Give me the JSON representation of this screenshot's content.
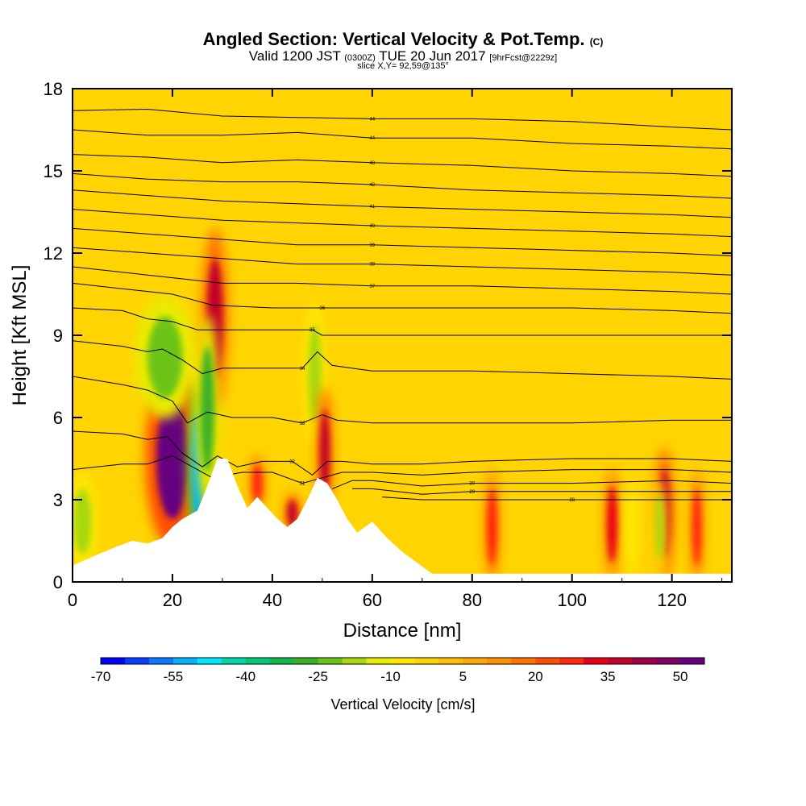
{
  "header": {
    "title": "Angled Section: Vertical Velocity & Pot.Temp.",
    "title_unit": "(C)",
    "valid_main": "Valid 1200 JST",
    "valid_utc": "(0300Z)",
    "valid_date": "TUE 20 Jun 2017",
    "forecast": "[9hrFcst@2229z]",
    "slice": "slice X,Y= 92,59@135°"
  },
  "chart_data": {
    "type": "heatmap",
    "xlabel": "Distance [nm]",
    "ylabel": "Height [Kft MSL]",
    "xlim": [
      0,
      132
    ],
    "ylim": [
      0,
      18
    ],
    "x_ticks": [
      "0",
      "20",
      "40",
      "60",
      "80",
      "100",
      "120"
    ],
    "y_ticks": [
      "0",
      "3",
      "6",
      "9",
      "12",
      "15",
      "18"
    ],
    "colorbar": {
      "label": "Vertical Velocity [cm/s]",
      "range": [
        -70,
        55
      ],
      "tick_labels": [
        "-70",
        "-55",
        "-40",
        "-25",
        "-10",
        "5",
        "20",
        "35",
        "50"
      ],
      "colors": [
        "#0000ff",
        "#0a3cff",
        "#0a78ff",
        "#00b4ff",
        "#00e8ff",
        "#00d8a8",
        "#00c878",
        "#10b848",
        "#3cb028",
        "#6cc418",
        "#a8d810",
        "#e8ec00",
        "#ffe800",
        "#ffd400",
        "#ffbe00",
        "#ffa800",
        "#ff9000",
        "#ff7400",
        "#ff5000",
        "#ff2810",
        "#e80018",
        "#c4002c",
        "#a00048",
        "#820064",
        "#660080"
      ]
    },
    "terrain": [
      {
        "x": 0,
        "y": 0.6
      },
      {
        "x": 5,
        "y": 1
      },
      {
        "x": 9,
        "y": 1.3
      },
      {
        "x": 12,
        "y": 1.5
      },
      {
        "x": 15,
        "y": 1.4
      },
      {
        "x": 18,
        "y": 1.6
      },
      {
        "x": 20,
        "y": 2
      },
      {
        "x": 22,
        "y": 2.3
      },
      {
        "x": 25,
        "y": 2.6
      },
      {
        "x": 27,
        "y": 3.5
      },
      {
        "x": 29,
        "y": 4.5
      },
      {
        "x": 31,
        "y": 4.5
      },
      {
        "x": 33,
        "y": 3.5
      },
      {
        "x": 35,
        "y": 2.7
      },
      {
        "x": 37,
        "y": 3.1
      },
      {
        "x": 39,
        "y": 2.7
      },
      {
        "x": 41,
        "y": 2.3
      },
      {
        "x": 43,
        "y": 2
      },
      {
        "x": 45,
        "y": 2.3
      },
      {
        "x": 47,
        "y": 3
      },
      {
        "x": 49,
        "y": 3.8
      },
      {
        "x": 51,
        "y": 3.6
      },
      {
        "x": 53,
        "y": 3
      },
      {
        "x": 55,
        "y": 2.3
      },
      {
        "x": 57,
        "y": 1.8
      },
      {
        "x": 60,
        "y": 2.2
      },
      {
        "x": 63,
        "y": 1.6
      },
      {
        "x": 66,
        "y": 1.1
      },
      {
        "x": 69,
        "y": 0.7
      },
      {
        "x": 72,
        "y": 0.3
      },
      {
        "x": 132,
        "y": 0.3
      }
    ],
    "features": [
      {
        "x": 20,
        "y": 4.5,
        "rx": 3.2,
        "ry": 2.2,
        "value": 55
      },
      {
        "x": 18.5,
        "y": 8.2,
        "rx": 3.5,
        "ry": 1.5,
        "value": -25
      },
      {
        "x": 25,
        "y": 4.2,
        "rx": 1.2,
        "ry": 2,
        "value": -55
      },
      {
        "x": 28.5,
        "y": 9.6,
        "rx": 1.6,
        "ry": 2.2,
        "value": 35
      },
      {
        "x": 27,
        "y": 6.3,
        "rx": 1.4,
        "ry": 2.3,
        "value": -30
      },
      {
        "x": 48.5,
        "y": 7.6,
        "rx": 1.3,
        "ry": 1.8,
        "value": -20
      },
      {
        "x": 50.5,
        "y": 4.7,
        "rx": 1,
        "ry": 1.6,
        "value": 35
      },
      {
        "x": 2,
        "y": 2.2,
        "rx": 1.8,
        "ry": 1.2,
        "value": -20
      },
      {
        "x": 37,
        "y": 3.6,
        "rx": 1,
        "ry": 0.7,
        "value": 25
      },
      {
        "x": 44,
        "y": 2.5,
        "rx": 1,
        "ry": 0.5,
        "value": 35
      },
      {
        "x": 84,
        "y": 2,
        "rx": 1,
        "ry": 1.4,
        "value": 25
      },
      {
        "x": 108,
        "y": 2.1,
        "rx": 1,
        "ry": 1.4,
        "value": 30
      },
      {
        "x": 112,
        "y": 2,
        "rx": 0.7,
        "ry": 1.2,
        "value": -10
      },
      {
        "x": 118.5,
        "y": 2.5,
        "rx": 1.2,
        "ry": 1.6,
        "value": 35
      },
      {
        "x": 117.5,
        "y": 2,
        "rx": 0.8,
        "ry": 1.2,
        "value": -20
      },
      {
        "x": 125,
        "y": 2,
        "rx": 0.9,
        "ry": 1.4,
        "value": 25
      }
    ],
    "isentropes": [
      {
        "label": "44",
        "points": [
          [
            0,
            17.2
          ],
          [
            15,
            17.25
          ],
          [
            30,
            17.0
          ],
          [
            45,
            16.95
          ],
          [
            60,
            16.9
          ],
          [
            80,
            16.9
          ],
          [
            100,
            16.8
          ],
          [
            120,
            16.6
          ],
          [
            132,
            16.5
          ]
        ]
      },
      {
        "label": "44",
        "points": [
          [
            0,
            16.5
          ],
          [
            15,
            16.3
          ],
          [
            30,
            16.3
          ],
          [
            45,
            16.4
          ],
          [
            60,
            16.2
          ],
          [
            80,
            16.2
          ],
          [
            100,
            16.0
          ],
          [
            120,
            15.9
          ],
          [
            132,
            15.8
          ]
        ]
      },
      {
        "label": "43",
        "points": [
          [
            0,
            15.6
          ],
          [
            15,
            15.5
          ],
          [
            30,
            15.3
          ],
          [
            45,
            15.4
          ],
          [
            60,
            15.3
          ],
          [
            80,
            15.2
          ],
          [
            100,
            15.0
          ],
          [
            120,
            14.9
          ],
          [
            132,
            14.8
          ]
        ]
      },
      {
        "label": "42",
        "points": [
          [
            0,
            14.9
          ],
          [
            15,
            14.7
          ],
          [
            30,
            14.6
          ],
          [
            45,
            14.6
          ],
          [
            60,
            14.5
          ],
          [
            80,
            14.3
          ],
          [
            100,
            14.2
          ],
          [
            120,
            14.1
          ],
          [
            132,
            14.0
          ]
        ]
      },
      {
        "label": "41",
        "points": [
          [
            0,
            14.3
          ],
          [
            15,
            14.1
          ],
          [
            30,
            13.9
          ],
          [
            45,
            13.8
          ],
          [
            60,
            13.7
          ],
          [
            80,
            13.6
          ],
          [
            100,
            13.5
          ],
          [
            120,
            13.4
          ],
          [
            132,
            13.3
          ]
        ]
      },
      {
        "label": "40",
        "points": [
          [
            0,
            13.6
          ],
          [
            15,
            13.4
          ],
          [
            30,
            13.2
          ],
          [
            45,
            13.1
          ],
          [
            60,
            13.0
          ],
          [
            80,
            12.9
          ],
          [
            100,
            12.8
          ],
          [
            120,
            12.7
          ],
          [
            132,
            12.6
          ]
        ]
      },
      {
        "label": "39",
        "points": [
          [
            0,
            12.9
          ],
          [
            15,
            12.7
          ],
          [
            30,
            12.5
          ],
          [
            45,
            12.3
          ],
          [
            60,
            12.3
          ],
          [
            80,
            12.2
          ],
          [
            100,
            12.1
          ],
          [
            120,
            12.0
          ],
          [
            132,
            11.9
          ]
        ]
      },
      {
        "label": "38",
        "points": [
          [
            0,
            12.2
          ],
          [
            15,
            12.0
          ],
          [
            30,
            11.8
          ],
          [
            45,
            11.6
          ],
          [
            60,
            11.6
          ],
          [
            80,
            11.5
          ],
          [
            100,
            11.4
          ],
          [
            120,
            11.3
          ],
          [
            132,
            11.2
          ]
        ]
      },
      {
        "label": "37",
        "points": [
          [
            0,
            11.5
          ],
          [
            15,
            11.2
          ],
          [
            30,
            10.9
          ],
          [
            45,
            10.9
          ],
          [
            60,
            10.8
          ],
          [
            80,
            10.8
          ],
          [
            100,
            10.7
          ],
          [
            120,
            10.6
          ],
          [
            132,
            10.5
          ]
        ]
      },
      {
        "label": "36",
        "points": [
          [
            0,
            10.9
          ],
          [
            15,
            10.6
          ],
          [
            20,
            10.5
          ],
          [
            28,
            10.1
          ],
          [
            40,
            10.0
          ],
          [
            50,
            10.0
          ],
          [
            60,
            10.0
          ],
          [
            80,
            10.0
          ],
          [
            100,
            10.0
          ],
          [
            120,
            9.9
          ],
          [
            132,
            9.8
          ]
        ]
      },
      {
        "label": "35",
        "points": [
          [
            0,
            10.0
          ],
          [
            10,
            9.9
          ],
          [
            15,
            9.6
          ],
          [
            20,
            9.5
          ],
          [
            25,
            9.2
          ],
          [
            30,
            9.2
          ],
          [
            40,
            9.2
          ],
          [
            48,
            9.2
          ],
          [
            50,
            9.0
          ],
          [
            60,
            9.0
          ],
          [
            80,
            9.0
          ],
          [
            100,
            9.0
          ],
          [
            120,
            9.0
          ],
          [
            132,
            9.0
          ]
        ]
      },
      {
        "label": "34",
        "points": [
          [
            0,
            8.8
          ],
          [
            10,
            8.6
          ],
          [
            15,
            8.4
          ],
          [
            18,
            8.5
          ],
          [
            22,
            8.1
          ],
          [
            26,
            7.6
          ],
          [
            30,
            7.8
          ],
          [
            40,
            7.8
          ],
          [
            46,
            7.8
          ],
          [
            49,
            8.4
          ],
          [
            52,
            7.9
          ],
          [
            60,
            7.7
          ],
          [
            80,
            7.7
          ],
          [
            100,
            7.6
          ],
          [
            120,
            7.5
          ],
          [
            132,
            7.4
          ]
        ]
      },
      {
        "label": "33",
        "points": [
          [
            0,
            7.5
          ],
          [
            10,
            7.2
          ],
          [
            15,
            7.0
          ],
          [
            20,
            6.6
          ],
          [
            23,
            5.8
          ],
          [
            27,
            6.2
          ],
          [
            32,
            6.0
          ],
          [
            40,
            6.0
          ],
          [
            46,
            5.8
          ],
          [
            50,
            6.1
          ],
          [
            53,
            5.9
          ],
          [
            60,
            5.8
          ],
          [
            80,
            5.8
          ],
          [
            100,
            5.8
          ],
          [
            120,
            5.9
          ],
          [
            132,
            5.9
          ]
        ]
      },
      {
        "label": "32",
        "points": [
          [
            0,
            5.5
          ],
          [
            10,
            5.4
          ],
          [
            15,
            5.2
          ],
          [
            19,
            5.3
          ],
          [
            22,
            4.7
          ],
          [
            26,
            4.2
          ],
          [
            29,
            4.6
          ],
          [
            33,
            4.2
          ],
          [
            38,
            4.4
          ],
          [
            44,
            4.4
          ],
          [
            48,
            3.9
          ],
          [
            51,
            4.4
          ],
          [
            54,
            4.4
          ],
          [
            60,
            4.3
          ],
          [
            70,
            4.3
          ],
          [
            80,
            4.4
          ],
          [
            100,
            4.5
          ],
          [
            120,
            4.5
          ],
          [
            132,
            4.4
          ]
        ]
      },
      {
        "label": "31",
        "points": [
          [
            0,
            4.1
          ],
          [
            10,
            4.3
          ],
          [
            15,
            4.3
          ],
          [
            20,
            4.6
          ],
          [
            24,
            4.2
          ],
          [
            28,
            3.8
          ],
          [
            34,
            4.0
          ],
          [
            40,
            4.0
          ],
          [
            46,
            3.6
          ],
          [
            50,
            3.8
          ],
          [
            54,
            4.0
          ],
          [
            60,
            4.0
          ],
          [
            70,
            3.9
          ],
          [
            80,
            4.0
          ],
          [
            100,
            4.1
          ],
          [
            120,
            4.1
          ],
          [
            132,
            4.0
          ]
        ]
      },
      {
        "label": "30",
        "points": [
          [
            52,
            3.4
          ],
          [
            56,
            3.7
          ],
          [
            60,
            3.7
          ],
          [
            70,
            3.5
          ],
          [
            80,
            3.6
          ],
          [
            100,
            3.6
          ],
          [
            120,
            3.7
          ],
          [
            132,
            3.6
          ]
        ]
      },
      {
        "label": "29",
        "points": [
          [
            56,
            3.4
          ],
          [
            60,
            3.4
          ],
          [
            70,
            3.2
          ],
          [
            80,
            3.3
          ],
          [
            100,
            3.3
          ],
          [
            120,
            3.3
          ],
          [
            132,
            3.3
          ]
        ]
      },
      {
        "label": "28",
        "points": [
          [
            62,
            3.1
          ],
          [
            70,
            3.0
          ],
          [
            80,
            3.0
          ],
          [
            100,
            3.0
          ],
          [
            120,
            3.0
          ],
          [
            132,
            3.0
          ]
        ]
      }
    ]
  }
}
